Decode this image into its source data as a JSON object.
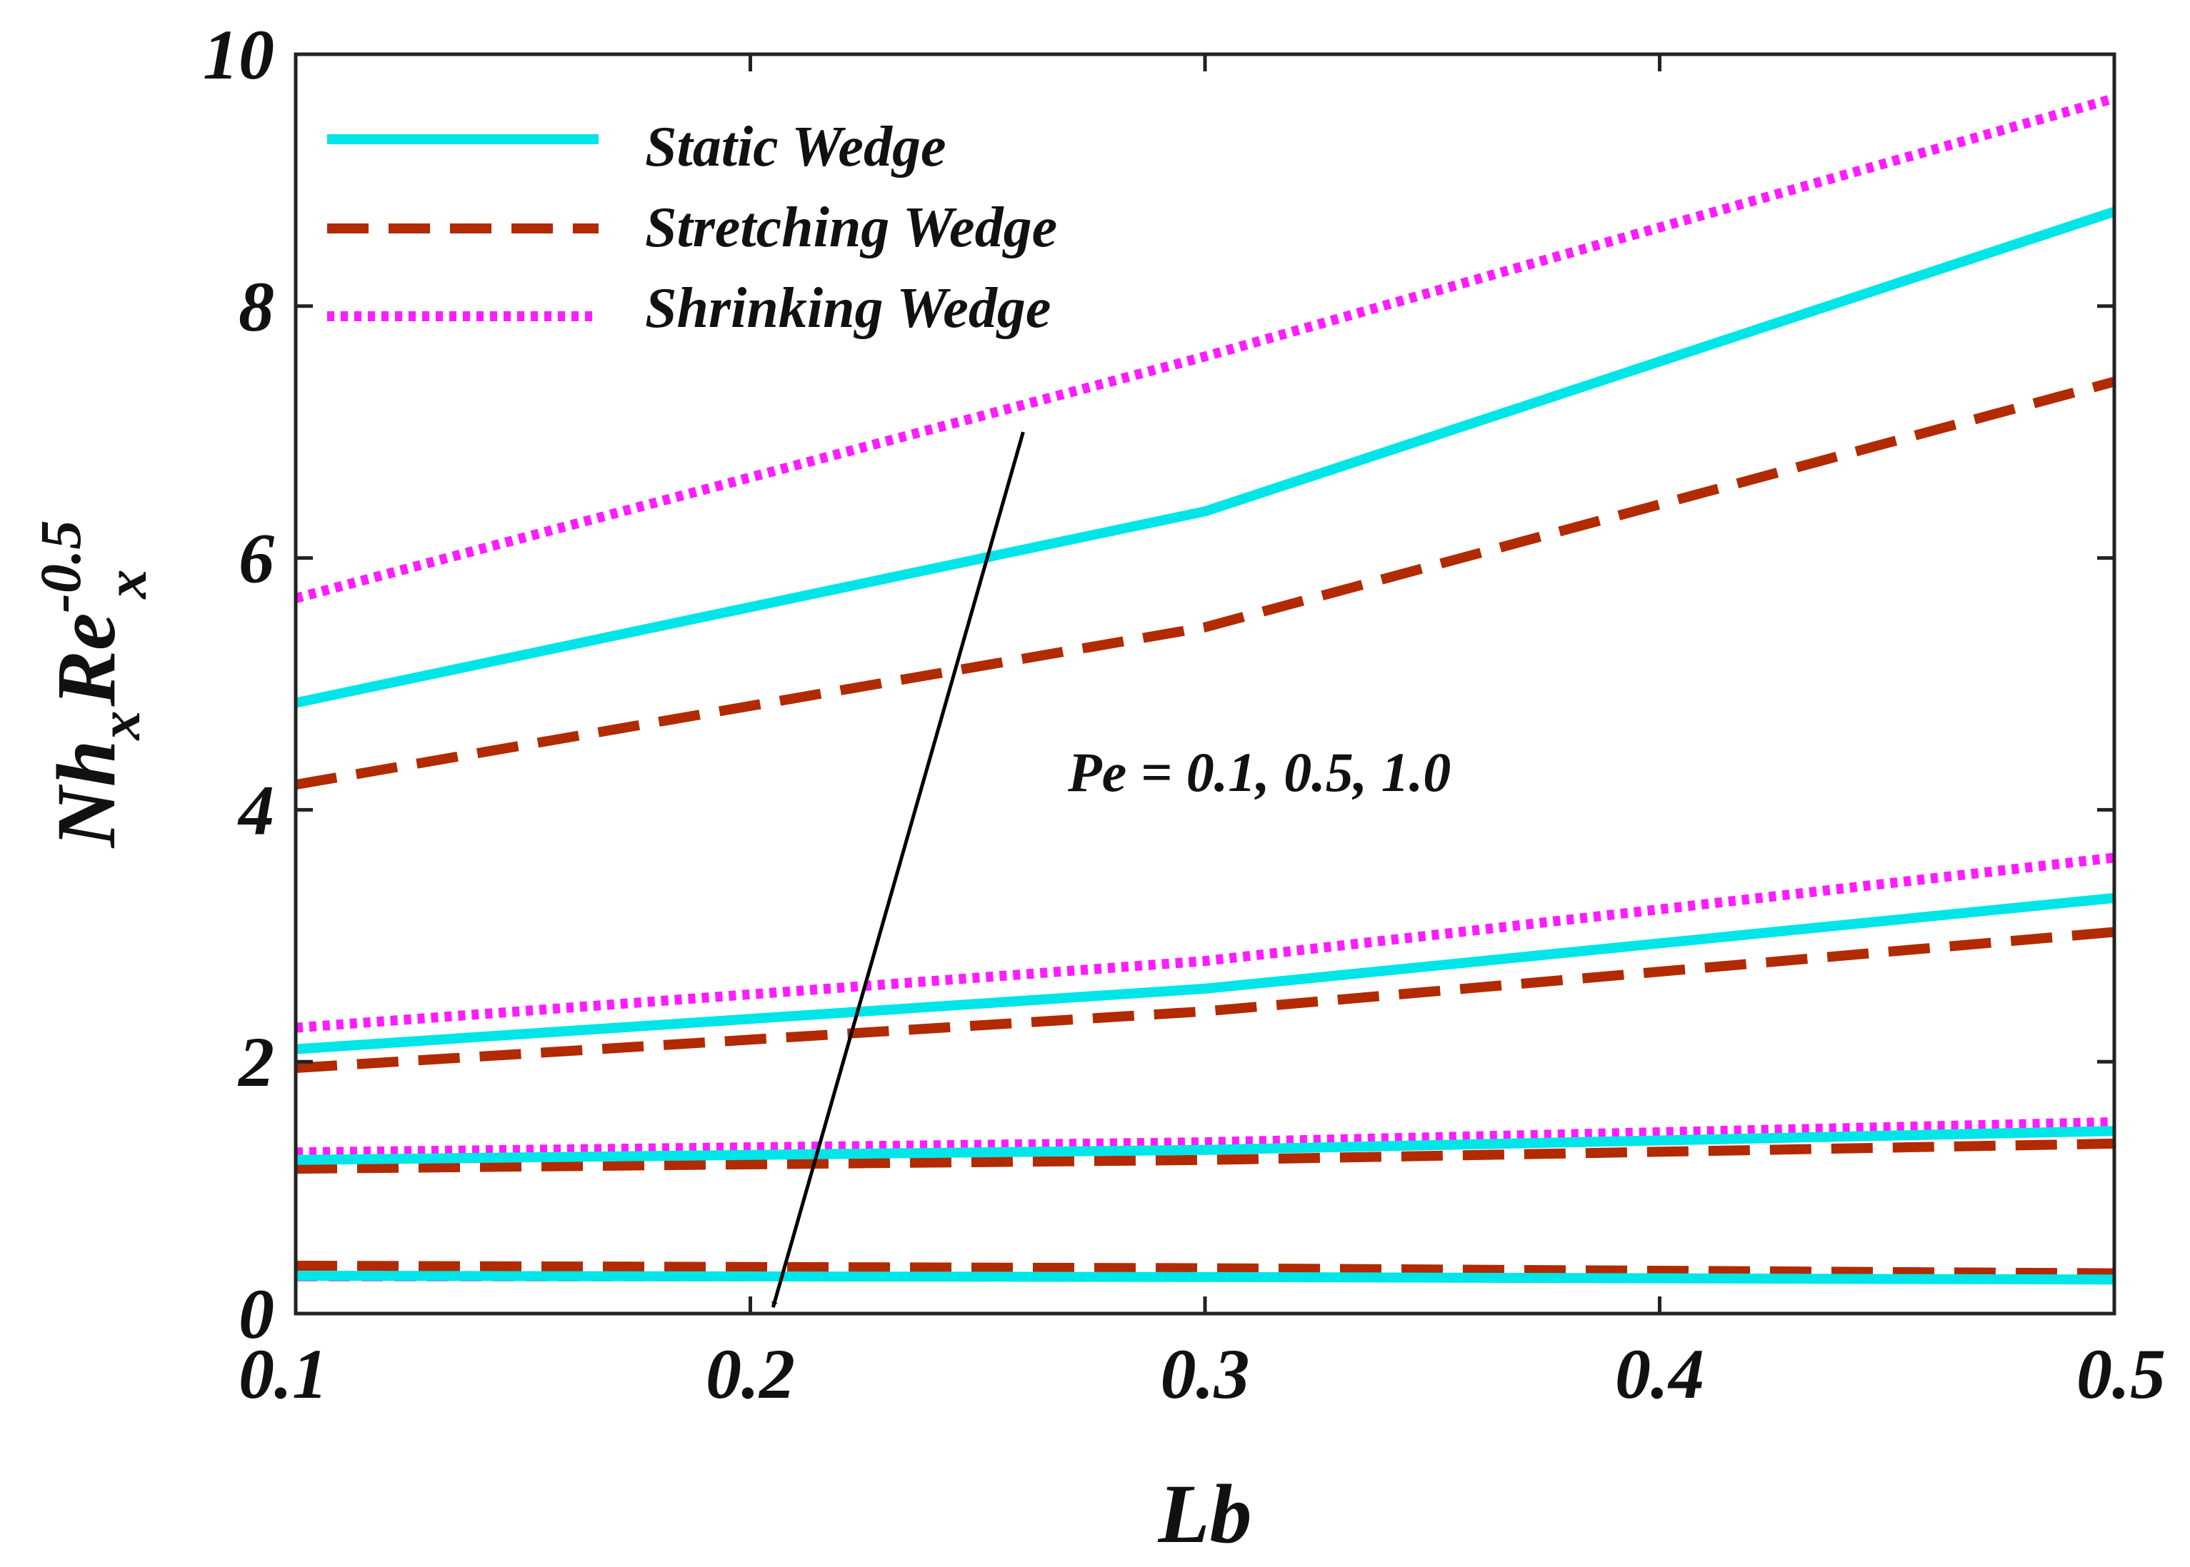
{
  "chart_data": {
    "type": "line",
    "title": "",
    "xlabel": "Lb",
    "ylabel": {
      "base": "Nh",
      "sub1": "x",
      "mid": "Re",
      "sup": "-0.5",
      "sub2": "x"
    },
    "xlim": [
      0.1,
      0.5
    ],
    "ylim": [
      0,
      10
    ],
    "xticks": [
      0.1,
      0.2,
      0.3,
      0.4,
      0.5
    ],
    "xtick_labels": [
      "0.1",
      "0.2",
      "0.3",
      "0.4",
      "0.5"
    ],
    "yticks": [
      0,
      2,
      4,
      6,
      8,
      10
    ],
    "ytick_labels": [
      "0",
      "2",
      "4",
      "6",
      "8",
      "10"
    ],
    "x": [
      0.1,
      0.3,
      0.5
    ],
    "legend": {
      "location": "top-left",
      "entries": [
        {
          "label": "Static Wedge",
          "style": "solid",
          "color": "#00e5e8"
        },
        {
          "label": "Stretching Wedge",
          "style": "dashed",
          "color": "#b22a00"
        },
        {
          "label": "Shrinking Wedge",
          "style": "dotted",
          "color": "#ff1cff"
        }
      ]
    },
    "series": [
      {
        "name": "Static Wedge",
        "group": "Pe = 0.1",
        "style": "solid",
        "color": "#00e5e8",
        "values": [
          4.85,
          6.37,
          8.75
        ]
      },
      {
        "name": "Stretching Wedge",
        "group": "Pe = 0.1",
        "style": "dashed",
        "color": "#b22a00",
        "values": [
          4.2,
          5.45,
          7.4
        ]
      },
      {
        "name": "Shrinking Wedge",
        "group": "Pe = 0.1",
        "style": "dotted",
        "color": "#ff1cff",
        "values": [
          5.68,
          7.6,
          9.65
        ]
      },
      {
        "name": "Static Wedge",
        "group": "Pe = 0.5",
        "style": "solid",
        "color": "#00e5e8",
        "values": [
          2.1,
          2.58,
          3.3
        ]
      },
      {
        "name": "Stretching Wedge",
        "group": "Pe = 0.5",
        "style": "dashed",
        "color": "#b22a00",
        "values": [
          1.95,
          2.4,
          3.03
        ]
      },
      {
        "name": "Shrinking Wedge",
        "group": "Pe = 0.5",
        "style": "dotted",
        "color": "#ff1cff",
        "values": [
          2.27,
          2.8,
          3.62
        ]
      },
      {
        "name": "Static Wedge",
        "group": "Pe = 1.0",
        "style": "solid",
        "color": "#00e5e8",
        "values": [
          1.22,
          1.3,
          1.45
        ]
      },
      {
        "name": "Stretching Wedge",
        "group": "Pe = 1.0",
        "style": "dashed",
        "color": "#b22a00",
        "values": [
          1.15,
          1.22,
          1.35
        ]
      },
      {
        "name": "Shrinking Wedge",
        "group": "Pe = 1.0",
        "style": "dotted",
        "color": "#ff1cff",
        "values": [
          1.28,
          1.36,
          1.52
        ]
      },
      {
        "name": "Static Wedge",
        "group": "bottom",
        "style": "solid",
        "color": "#00e5e8",
        "values": [
          0.3,
          0.29,
          0.27
        ]
      },
      {
        "name": "Stretching Wedge",
        "group": "bottom",
        "style": "dashed",
        "color": "#b22a00",
        "values": [
          0.38,
          0.36,
          0.32
        ]
      },
      {
        "name": "Shrinking Wedge",
        "group": "bottom",
        "style": "thin-dashed",
        "color": "#ff1cff",
        "values": [
          0.27,
          0.27,
          0.27
        ]
      }
    ],
    "annotations": [
      {
        "text": "Pe = 0.1, 0.5, 1.0",
        "arrow_from": [
          0.26,
          7.0
        ],
        "arrow_to": [
          0.205,
          0.05
        ]
      }
    ],
    "grid": false
  }
}
